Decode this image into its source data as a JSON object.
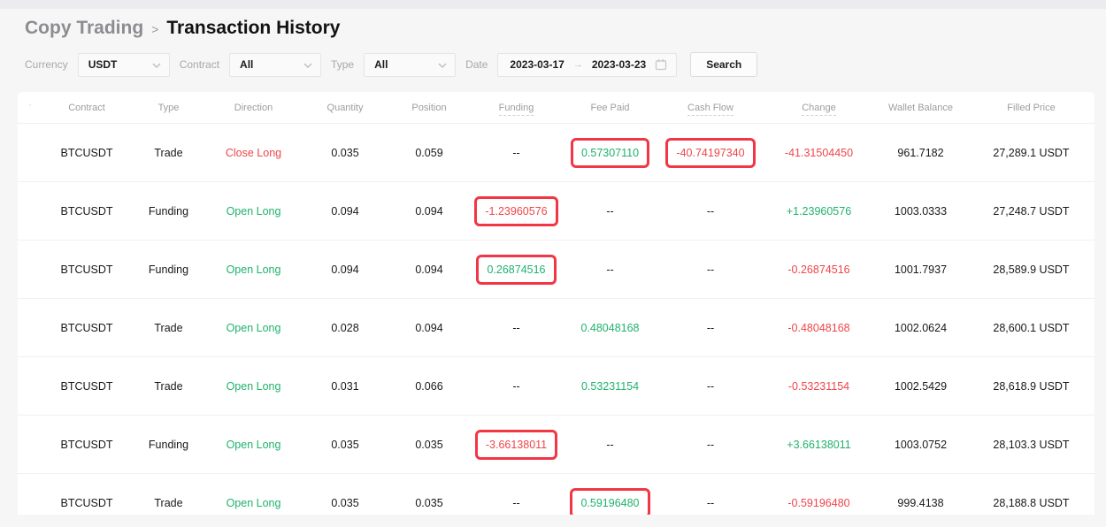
{
  "breadcrumb": {
    "parent": "Copy Trading",
    "separator": ">",
    "current": "Transaction History"
  },
  "filters": {
    "currency_label": "Currency",
    "currency_value": "USDT",
    "contract_label": "Contract",
    "contract_value": "All",
    "type_label": "Type",
    "type_value": "All",
    "date_label": "Date",
    "date_start": "2023-03-17",
    "date_arrow": "→",
    "date_end": "2023-03-23",
    "search_label": "Search"
  },
  "icons": {
    "chevron": "chevron-down-icon",
    "calendar": "calendar-icon",
    "corner_mark": "ˊ"
  },
  "table": {
    "columns": [
      {
        "key": "corner",
        "label": "ˊ",
        "underline": false
      },
      {
        "key": "contract",
        "label": "Contract",
        "underline": false
      },
      {
        "key": "type",
        "label": "Type",
        "underline": false
      },
      {
        "key": "direction",
        "label": "Direction",
        "underline": false
      },
      {
        "key": "quantity",
        "label": "Quantity",
        "underline": false
      },
      {
        "key": "position",
        "label": "Position",
        "underline": false
      },
      {
        "key": "funding",
        "label": "Funding",
        "underline": true
      },
      {
        "key": "fee-paid",
        "label": "Fee Paid",
        "underline": false
      },
      {
        "key": "cash-flow",
        "label": "Cash Flow",
        "underline": true
      },
      {
        "key": "change",
        "label": "Change",
        "underline": true
      },
      {
        "key": "wallet-balance",
        "label": "Wallet Balance",
        "underline": false
      },
      {
        "key": "filled-price",
        "label": "Filled Price",
        "underline": false
      }
    ],
    "rows": [
      {
        "cells": [
          {
            "value": ""
          },
          {
            "value": "BTCUSDT"
          },
          {
            "value": "Trade"
          },
          {
            "value": "Close Long",
            "color": "red"
          },
          {
            "value": "0.035"
          },
          {
            "value": "0.059"
          },
          {
            "value": "--"
          },
          {
            "value": "0.57307110",
            "color": "green",
            "highlighted": true
          },
          {
            "value": "-40.74197340",
            "color": "red",
            "highlighted": true
          },
          {
            "value": "-41.31504450",
            "color": "red"
          },
          {
            "value": "961.7182"
          },
          {
            "value": "27,289.1 USDT"
          }
        ]
      },
      {
        "cells": [
          {
            "value": ""
          },
          {
            "value": "BTCUSDT"
          },
          {
            "value": "Funding"
          },
          {
            "value": "Open Long",
            "color": "green"
          },
          {
            "value": "0.094"
          },
          {
            "value": "0.094"
          },
          {
            "value": "-1.23960576",
            "color": "red",
            "highlighted": true
          },
          {
            "value": "--"
          },
          {
            "value": "--"
          },
          {
            "value": "+1.23960576",
            "color": "green"
          },
          {
            "value": "1003.0333"
          },
          {
            "value": "27,248.7 USDT"
          }
        ]
      },
      {
        "cells": [
          {
            "value": ""
          },
          {
            "value": "BTCUSDT"
          },
          {
            "value": "Funding"
          },
          {
            "value": "Open Long",
            "color": "green"
          },
          {
            "value": "0.094"
          },
          {
            "value": "0.094"
          },
          {
            "value": "0.26874516",
            "color": "green",
            "highlighted": true
          },
          {
            "value": "--"
          },
          {
            "value": "--"
          },
          {
            "value": "-0.26874516",
            "color": "red"
          },
          {
            "value": "1001.7937"
          },
          {
            "value": "28,589.9 USDT"
          }
        ]
      },
      {
        "cells": [
          {
            "value": ""
          },
          {
            "value": "BTCUSDT"
          },
          {
            "value": "Trade"
          },
          {
            "value": "Open Long",
            "color": "green"
          },
          {
            "value": "0.028"
          },
          {
            "value": "0.094"
          },
          {
            "value": "--"
          },
          {
            "value": "0.48048168",
            "color": "green"
          },
          {
            "value": "--"
          },
          {
            "value": "-0.48048168",
            "color": "red"
          },
          {
            "value": "1002.0624"
          },
          {
            "value": "28,600.1 USDT"
          }
        ]
      },
      {
        "cells": [
          {
            "value": ""
          },
          {
            "value": "BTCUSDT"
          },
          {
            "value": "Trade"
          },
          {
            "value": "Open Long",
            "color": "green"
          },
          {
            "value": "0.031"
          },
          {
            "value": "0.066"
          },
          {
            "value": "--"
          },
          {
            "value": "0.53231154",
            "color": "green"
          },
          {
            "value": "--"
          },
          {
            "value": "-0.53231154",
            "color": "red"
          },
          {
            "value": "1002.5429"
          },
          {
            "value": "28,618.9 USDT"
          }
        ]
      },
      {
        "cells": [
          {
            "value": ""
          },
          {
            "value": "BTCUSDT"
          },
          {
            "value": "Funding"
          },
          {
            "value": "Open Long",
            "color": "green"
          },
          {
            "value": "0.035"
          },
          {
            "value": "0.035"
          },
          {
            "value": "-3.66138011",
            "color": "red",
            "highlighted": true
          },
          {
            "value": "--"
          },
          {
            "value": "--"
          },
          {
            "value": "+3.66138011",
            "color": "green"
          },
          {
            "value": "1003.0752"
          },
          {
            "value": "28,103.3 USDT"
          }
        ]
      },
      {
        "cells": [
          {
            "value": ""
          },
          {
            "value": "BTCUSDT"
          },
          {
            "value": "Trade"
          },
          {
            "value": "Open Long",
            "color": "green"
          },
          {
            "value": "0.035"
          },
          {
            "value": "0.035"
          },
          {
            "value": "--"
          },
          {
            "value": "0.59196480",
            "color": "green",
            "highlighted": true
          },
          {
            "value": "--"
          },
          {
            "value": "-0.59196480",
            "color": "red"
          },
          {
            "value": "999.4138"
          },
          {
            "value": "28,188.8 USDT"
          }
        ]
      }
    ]
  },
  "colors": {
    "positive": "#20b26c",
    "negative": "#ef454a",
    "highlight_box": "#f23645"
  }
}
